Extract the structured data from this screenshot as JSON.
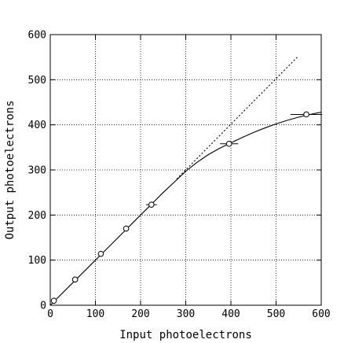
{
  "chart_data": {
    "type": "line",
    "title": "",
    "xlabel": "Input photoelectrons",
    "ylabel": "Output photoelectrons",
    "xlim": [
      0,
      600
    ],
    "ylim": [
      0,
      600
    ],
    "x_ticks": [
      0,
      100,
      200,
      300,
      400,
      500,
      600
    ],
    "y_ticks": [
      0,
      100,
      200,
      300,
      400,
      500,
      600
    ],
    "grid": "dotted",
    "series": [
      {
        "style": "points with horizontal error bars",
        "marker": "open-circle",
        "points": [
          {
            "x": 8,
            "y": 10,
            "xerr": 0
          },
          {
            "x": 55,
            "y": 57,
            "xerr": 0
          },
          {
            "x": 112,
            "y": 114,
            "xerr": 0
          },
          {
            "x": 168,
            "y": 170,
            "xerr": 0
          },
          {
            "x": 224,
            "y": 223,
            "xerr": 12
          },
          {
            "x": 396,
            "y": 358,
            "xerr": 20
          },
          {
            "x": 567,
            "y": 423,
            "xerr": 35
          }
        ]
      },
      {
        "style": "solid",
        "points": [
          [
            0,
            0
          ],
          [
            50,
            50
          ],
          [
            100,
            100
          ],
          [
            150,
            150
          ],
          [
            200,
            200
          ],
          [
            250,
            250
          ],
          [
            280,
            278
          ],
          [
            300,
            297
          ],
          [
            325,
            317
          ],
          [
            350,
            334
          ],
          [
            375,
            348
          ],
          [
            400,
            360
          ],
          [
            425,
            372
          ],
          [
            450,
            383
          ],
          [
            475,
            393
          ],
          [
            500,
            402
          ],
          [
            525,
            410
          ],
          [
            550,
            417
          ],
          [
            575,
            423
          ],
          [
            600,
            428
          ]
        ]
      },
      {
        "style": "dashed",
        "points": [
          [
            280,
            280
          ],
          [
            550,
            553
          ]
        ]
      }
    ]
  }
}
